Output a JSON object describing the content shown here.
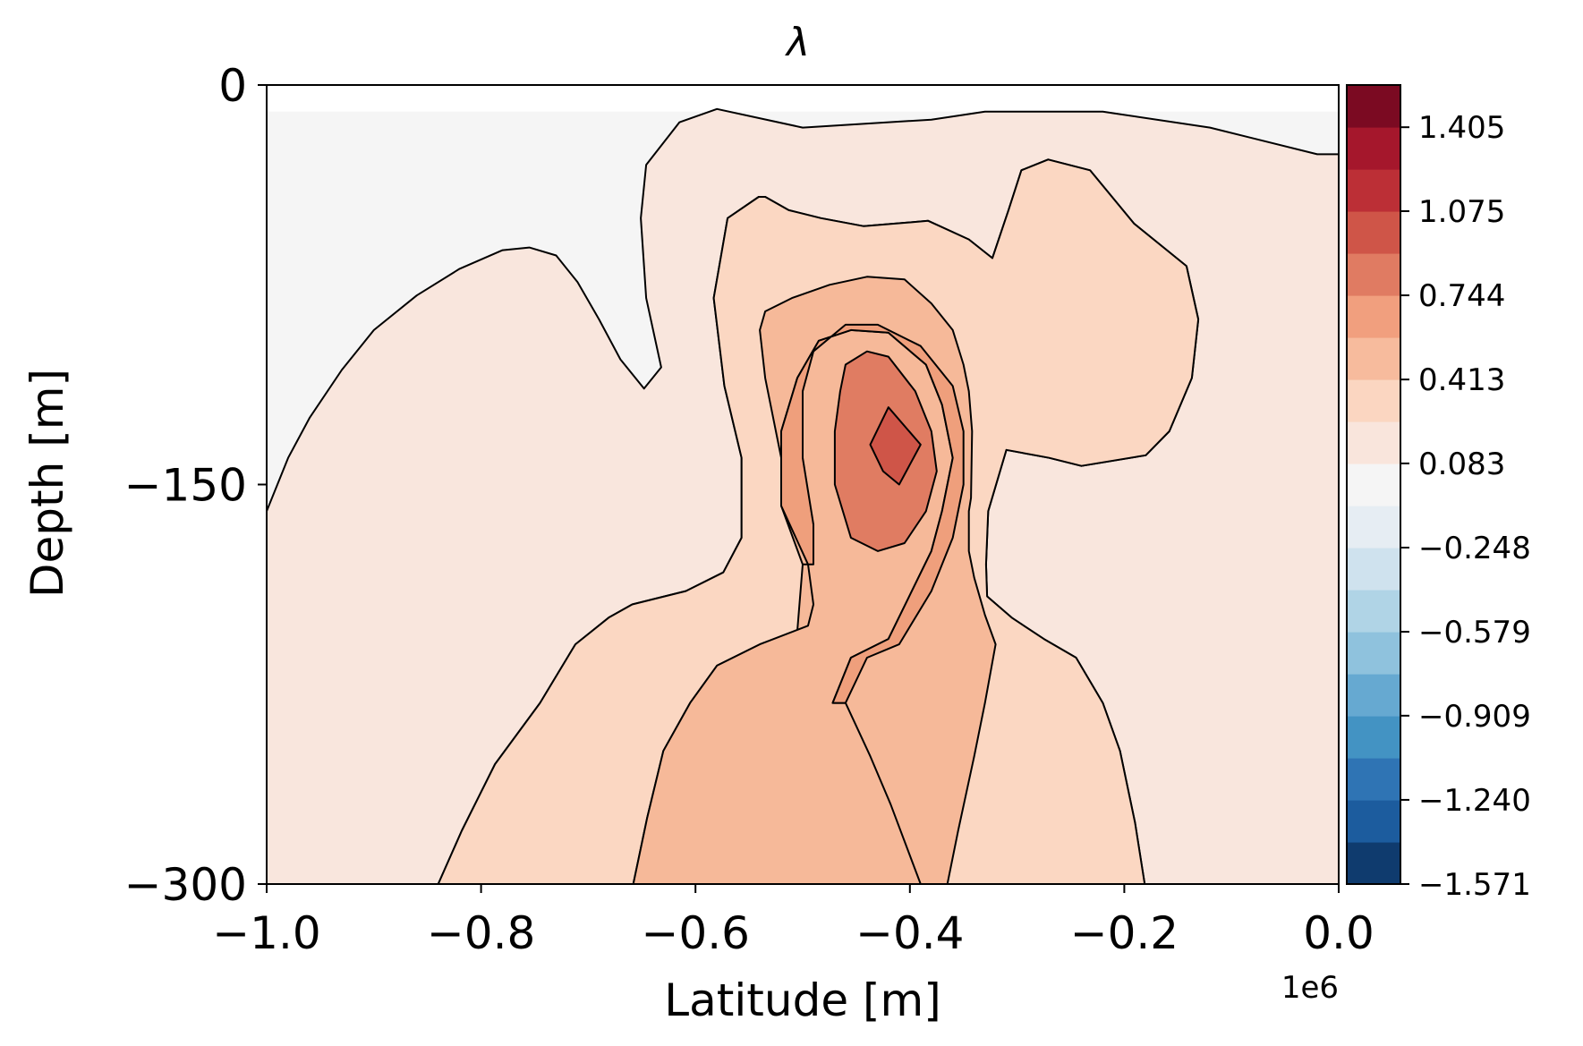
{
  "chart_data": {
    "type": "contourf",
    "title": "λ",
    "xlabel": "Latitude [m]",
    "ylabel": "Depth [m]",
    "x_offset_label": "1e6",
    "xlim": [
      -1.0,
      0.0
    ],
    "ylim": [
      -300,
      0
    ],
    "x_ticks": [
      -1.0,
      -0.8,
      -0.6,
      -0.4,
      -0.2,
      0.0
    ],
    "x_tick_labels": [
      "−1.0",
      "−0.8",
      "−0.6",
      "−0.4",
      "−0.2",
      "0.0"
    ],
    "y_ticks": [
      0,
      -150,
      -300
    ],
    "y_tick_labels": [
      "0",
      "−150",
      "−300"
    ],
    "colormap": "RdBu_r",
    "colorbar": {
      "range": [
        -1.571,
        1.571
      ],
      "tick_values": [
        -1.571,
        -1.24,
        -0.909,
        -0.579,
        -0.248,
        0.083,
        0.413,
        0.744,
        1.075,
        1.405
      ],
      "tick_labels": [
        "−1.571",
        "−1.240",
        "−0.909",
        "−0.579",
        "−0.248",
        "0.083",
        "0.413",
        "0.744",
        "1.075",
        "1.405"
      ],
      "band_colors": [
        "#0f3b6e",
        "#1c5c9e",
        "#2f74b4",
        "#4393c3",
        "#66a9d1",
        "#8fc2dd",
        "#b0d4e6",
        "#cfe2ee",
        "#e6edf3",
        "#f5f5f5",
        "#f9e5dc",
        "#fbd6c1",
        "#f7bb9d",
        "#f19f7e",
        "#e07b62",
        "#cf5548",
        "#bc2f36",
        "#a5172c",
        "#7b0a22"
      ]
    },
    "contour_fill_colors": {
      "background": "#f5f5f5",
      "level_1": "#f9e6dd",
      "level_2": "#fbd7c2",
      "level_3": "#f6b999",
      "level_4": "#ef9f7c",
      "level_5": "#e07c62",
      "level_6": "#cf5548"
    },
    "contours": [
      {
        "name": "level_1",
        "points": [
          [
            -1.0,
            -160
          ],
          [
            -0.98,
            -140
          ],
          [
            -0.96,
            -125
          ],
          [
            -0.93,
            -107
          ],
          [
            -0.9,
            -92
          ],
          [
            -0.86,
            -79
          ],
          [
            -0.82,
            -69
          ],
          [
            -0.78,
            -62
          ],
          [
            -0.755,
            -61
          ],
          [
            -0.73,
            -64
          ],
          [
            -0.71,
            -74
          ],
          [
            -0.69,
            -88
          ],
          [
            -0.67,
            -103
          ],
          [
            -0.648,
            -114
          ],
          [
            -0.632,
            -106
          ],
          [
            -0.646,
            -80
          ],
          [
            -0.651,
            -50
          ],
          [
            -0.646,
            -30
          ],
          [
            -0.615,
            -14
          ],
          [
            -0.58,
            -9
          ],
          [
            -0.5,
            -16
          ],
          [
            -0.38,
            -13
          ],
          [
            -0.33,
            -10
          ],
          [
            -0.22,
            -10
          ],
          [
            -0.12,
            -16
          ],
          [
            -0.02,
            -26
          ],
          [
            0.0,
            -26
          ],
          [
            0.0,
            -300
          ],
          [
            -0.181,
            -300
          ],
          [
            -0.19,
            -277
          ],
          [
            -0.204,
            -250
          ],
          [
            -0.22,
            -232
          ],
          [
            -0.245,
            -215
          ],
          [
            -0.275,
            -208
          ],
          [
            -0.305,
            -200
          ],
          [
            -0.328,
            -192
          ],
          [
            -0.329,
            -180
          ],
          [
            -0.327,
            -160
          ],
          [
            -0.31,
            -137
          ],
          [
            -0.27,
            -140
          ],
          [
            -0.24,
            -143
          ],
          [
            -0.18,
            -139
          ],
          [
            -0.158,
            -130
          ],
          [
            -0.137,
            -110
          ],
          [
            -0.131,
            -88
          ],
          [
            -0.142,
            -68
          ],
          [
            -0.191,
            -52
          ],
          [
            -0.232,
            -32
          ],
          [
            -0.271,
            -28
          ],
          [
            -0.296,
            -32
          ],
          [
            -0.308,
            -47
          ],
          [
            -0.323,
            -65
          ],
          [
            -0.345,
            -58
          ],
          [
            -0.383,
            -51
          ],
          [
            -0.443,
            -53
          ],
          [
            -0.483,
            -50
          ],
          [
            -0.513,
            -47
          ],
          [
            -0.535,
            -42
          ],
          [
            -0.541,
            -42
          ],
          [
            -0.57,
            -50
          ],
          [
            -0.583,
            -80
          ],
          [
            -0.573,
            -113
          ],
          [
            -0.557,
            -140
          ],
          [
            -0.557,
            -170
          ],
          [
            -0.574,
            -183
          ],
          [
            -0.609,
            -190
          ],
          [
            -0.659,
            -195
          ],
          [
            -0.681,
            -200
          ],
          [
            -0.712,
            -210
          ],
          [
            -0.745,
            -232
          ],
          [
            -0.787,
            -255
          ],
          [
            -0.818,
            -280
          ],
          [
            -0.84,
            -300
          ],
          [
            -1.0,
            -300
          ]
        ]
      },
      {
        "name": "level_2",
        "points": [
          [
            -0.84,
            -300
          ],
          [
            -0.818,
            -280
          ],
          [
            -0.787,
            -255
          ],
          [
            -0.745,
            -232
          ],
          [
            -0.712,
            -210
          ],
          [
            -0.681,
            -200
          ],
          [
            -0.659,
            -195
          ],
          [
            -0.609,
            -190
          ],
          [
            -0.574,
            -183
          ],
          [
            -0.557,
            -170
          ],
          [
            -0.557,
            -140
          ],
          [
            -0.573,
            -113
          ],
          [
            -0.583,
            -80
          ],
          [
            -0.57,
            -50
          ],
          [
            -0.541,
            -42
          ],
          [
            -0.535,
            -42
          ],
          [
            -0.513,
            -47
          ],
          [
            -0.483,
            -50
          ],
          [
            -0.443,
            -53
          ],
          [
            -0.383,
            -51
          ],
          [
            -0.345,
            -58
          ],
          [
            -0.323,
            -65
          ],
          [
            -0.308,
            -47
          ],
          [
            -0.296,
            -32
          ],
          [
            -0.271,
            -28
          ],
          [
            -0.232,
            -32
          ],
          [
            -0.191,
            -52
          ],
          [
            -0.142,
            -68
          ],
          [
            -0.131,
            -88
          ],
          [
            -0.137,
            -110
          ],
          [
            -0.158,
            -130
          ],
          [
            -0.18,
            -139
          ],
          [
            -0.24,
            -143
          ],
          [
            -0.27,
            -140
          ],
          [
            -0.31,
            -137
          ],
          [
            -0.327,
            -160
          ],
          [
            -0.329,
            -180
          ],
          [
            -0.328,
            -192
          ],
          [
            -0.305,
            -200
          ],
          [
            -0.275,
            -208
          ],
          [
            -0.245,
            -215
          ],
          [
            -0.22,
            -232
          ],
          [
            -0.204,
            -250
          ],
          [
            -0.19,
            -277
          ],
          [
            -0.181,
            -300
          ]
        ]
      },
      {
        "name": "level_3",
        "points": [
          [
            -0.658,
            -300
          ],
          [
            -0.645,
            -275
          ],
          [
            -0.63,
            -250
          ],
          [
            -0.605,
            -232
          ],
          [
            -0.58,
            -218
          ],
          [
            -0.54,
            -210
          ],
          [
            -0.505,
            -205
          ],
          [
            -0.5,
            -180
          ],
          [
            -0.503,
            -168
          ],
          [
            -0.52,
            -140
          ],
          [
            -0.535,
            -110
          ],
          [
            -0.54,
            -92
          ],
          [
            -0.535,
            -85
          ],
          [
            -0.51,
            -80
          ],
          [
            -0.475,
            -75
          ],
          [
            -0.44,
            -72
          ],
          [
            -0.405,
            -73
          ],
          [
            -0.38,
            -82
          ],
          [
            -0.36,
            -92
          ],
          [
            -0.35,
            -105
          ],
          [
            -0.345,
            -115
          ],
          [
            -0.342,
            -130
          ],
          [
            -0.343,
            -155
          ],
          [
            -0.345,
            -160
          ],
          [
            -0.345,
            -175
          ],
          [
            -0.34,
            -185
          ],
          [
            -0.33,
            -199
          ],
          [
            -0.32,
            -210
          ],
          [
            -0.33,
            -232
          ],
          [
            -0.34,
            -252
          ],
          [
            -0.355,
            -280
          ],
          [
            -0.365,
            -300
          ]
        ]
      },
      {
        "name": "level_3b",
        "points": [
          [
            -0.658,
            -300
          ],
          [
            -0.645,
            -275
          ],
          [
            -0.63,
            -250
          ],
          [
            -0.605,
            -232
          ],
          [
            -0.58,
            -218
          ],
          [
            -0.54,
            -210
          ],
          [
            -0.495,
            -203
          ],
          [
            -0.49,
            -195
          ],
          [
            -0.495,
            -180
          ],
          [
            -0.5,
            -180
          ],
          [
            -0.52,
            -158
          ],
          [
            -0.52,
            -130
          ],
          [
            -0.505,
            -110
          ],
          [
            -0.485,
            -96
          ],
          [
            -0.455,
            -92
          ],
          [
            -0.42,
            -93
          ],
          [
            -0.385,
            -105
          ],
          [
            -0.37,
            -120
          ],
          [
            -0.36,
            -140
          ],
          [
            -0.37,
            -160
          ],
          [
            -0.38,
            -175
          ],
          [
            -0.42,
            -208
          ],
          [
            -0.455,
            -215
          ],
          [
            -0.472,
            -232
          ],
          [
            -0.46,
            -232
          ],
          [
            -0.437,
            -252
          ],
          [
            -0.418,
            -270
          ],
          [
            -0.39,
            -300
          ]
        ]
      },
      {
        "name": "level_4",
        "points": [
          [
            -0.495,
            -180
          ],
          [
            -0.52,
            -158
          ],
          [
            -0.52,
            -130
          ],
          [
            -0.505,
            -110
          ],
          [
            -0.485,
            -96
          ],
          [
            -0.455,
            -92
          ],
          [
            -0.42,
            -93
          ],
          [
            -0.385,
            -105
          ],
          [
            -0.37,
            -120
          ],
          [
            -0.36,
            -140
          ],
          [
            -0.37,
            -160
          ],
          [
            -0.38,
            -175
          ],
          [
            -0.42,
            -208
          ],
          [
            -0.455,
            -215
          ],
          [
            -0.472,
            -232
          ],
          [
            -0.46,
            -232
          ],
          [
            -0.44,
            -215
          ],
          [
            -0.41,
            -210
          ],
          [
            -0.38,
            -190
          ],
          [
            -0.36,
            -170
          ],
          [
            -0.35,
            -150
          ],
          [
            -0.35,
            -130
          ],
          [
            -0.36,
            -113
          ],
          [
            -0.39,
            -98
          ],
          [
            -0.43,
            -90
          ],
          [
            -0.46,
            -90
          ],
          [
            -0.49,
            -100
          ],
          [
            -0.5,
            -115
          ],
          [
            -0.5,
            -140
          ],
          [
            -0.49,
            -165
          ],
          [
            -0.49,
            -180
          ]
        ]
      },
      {
        "name": "level_5",
        "points": [
          [
            -0.465,
            -115
          ],
          [
            -0.46,
            -105
          ],
          [
            -0.44,
            -100
          ],
          [
            -0.42,
            -102
          ],
          [
            -0.395,
            -115
          ],
          [
            -0.38,
            -130
          ],
          [
            -0.375,
            -145
          ],
          [
            -0.385,
            -160
          ],
          [
            -0.405,
            -172
          ],
          [
            -0.43,
            -175
          ],
          [
            -0.455,
            -170
          ],
          [
            -0.47,
            -150
          ],
          [
            -0.47,
            -130
          ]
        ]
      },
      {
        "name": "level_6",
        "points": [
          [
            -0.437,
            -135
          ],
          [
            -0.42,
            -121
          ],
          [
            -0.39,
            -135
          ],
          [
            -0.41,
            -150
          ],
          [
            -0.425,
            -145
          ]
        ]
      }
    ]
  }
}
